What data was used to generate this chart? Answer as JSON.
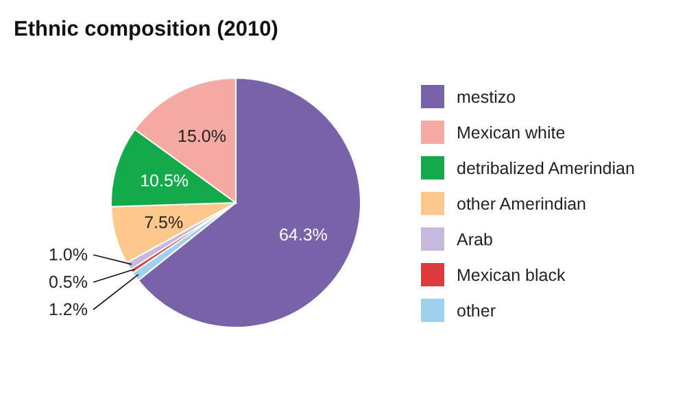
{
  "chart_data": {
    "type": "pie",
    "title": "Ethnic composition (2010)",
    "categories": [
      "mestizo",
      "Mexican white",
      "detribalized Amerindian",
      "other Amerindian",
      "Arab",
      "Mexican black",
      "other"
    ],
    "values": [
      64.3,
      15.0,
      10.5,
      7.5,
      1.0,
      0.5,
      1.2
    ],
    "value_labels": [
      "64.3%",
      "15.0%",
      "10.5%",
      "7.5%",
      "1.0%",
      "0.5%",
      "1.2%"
    ],
    "colors": [
      "#7862a8",
      "#f4aaa3",
      "#12aa4b",
      "#fcc88c",
      "#c7b9dd",
      "#dc3a3c",
      "#9fd0ee"
    ],
    "legend": "right"
  }
}
